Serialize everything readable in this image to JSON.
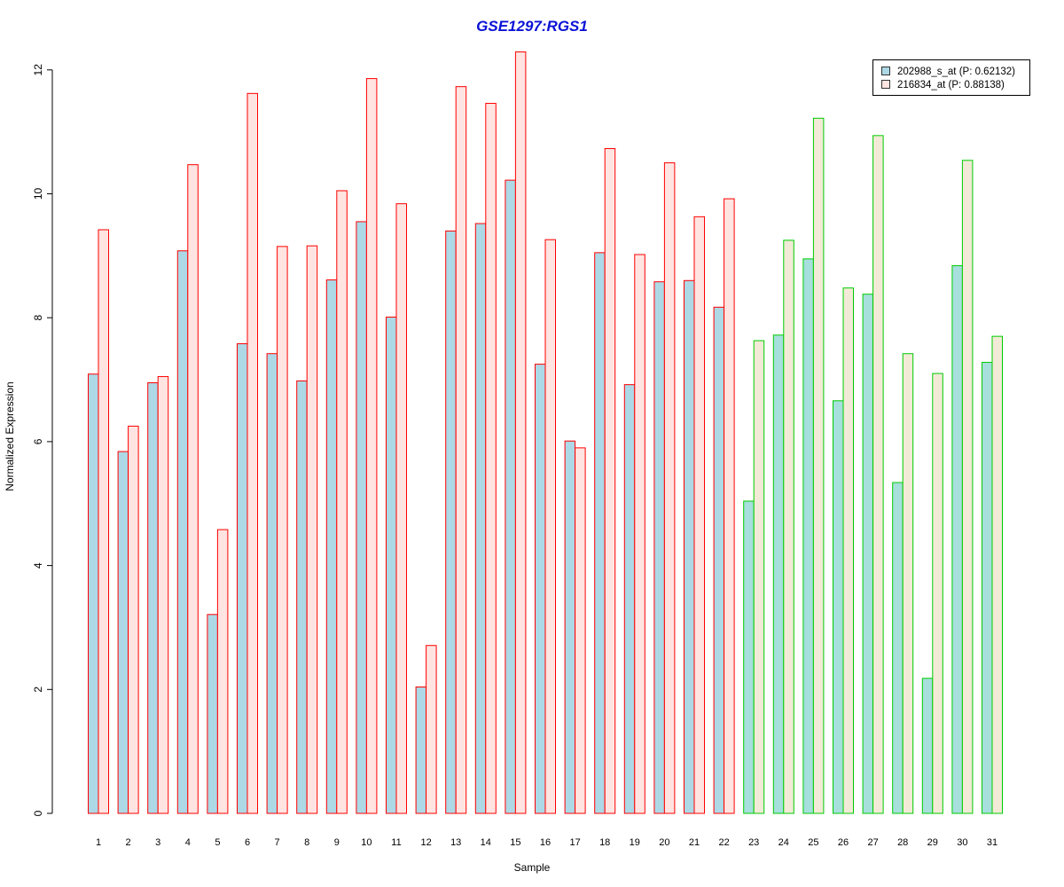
{
  "chart_data": {
    "type": "bar",
    "title": "GSE1297:RGS1",
    "xlabel": "Sample",
    "ylabel": "Normalized Expression",
    "ylim": [
      0,
      12.6
    ],
    "yticks": [
      "0",
      "2",
      "4",
      "6",
      "8",
      "10",
      "12"
    ],
    "categories": [
      "1",
      "2",
      "3",
      "4",
      "5",
      "6",
      "7",
      "8",
      "9",
      "10",
      "11",
      "12",
      "13",
      "14",
      "15",
      "16",
      "17",
      "18",
      "19",
      "20",
      "21",
      "22",
      "23",
      "24",
      "25",
      "26",
      "27",
      "28",
      "29",
      "30",
      "31"
    ],
    "group_by_sample": [
      "red",
      "red",
      "red",
      "red",
      "red",
      "red",
      "red",
      "red",
      "red",
      "red",
      "red",
      "red",
      "red",
      "red",
      "red",
      "red",
      "red",
      "red",
      "red",
      "red",
      "red",
      "red",
      "green",
      "green",
      "green",
      "green",
      "green",
      "green",
      "green",
      "green",
      "green"
    ],
    "series": [
      {
        "name": "202988_s_at (P: 0.62132)",
        "values": [
          7.09,
          5.84,
          6.95,
          9.08,
          3.21,
          7.58,
          7.42,
          6.98,
          8.61,
          9.55,
          8.01,
          2.04,
          9.4,
          9.52,
          10.22,
          7.25,
          6.01,
          9.05,
          6.92,
          8.58,
          8.6,
          8.17,
          5.04,
          7.72,
          8.95,
          6.66,
          8.38,
          5.34,
          2.18,
          8.84,
          7.28
        ]
      },
      {
        "name": "216834_at (P: 0.88138)",
        "values": [
          9.42,
          6.25,
          7.05,
          10.47,
          4.58,
          11.62,
          9.15,
          9.16,
          10.05,
          11.86,
          9.84,
          2.71,
          11.73,
          11.46,
          12.29,
          9.26,
          5.9,
          10.73,
          9.02,
          10.5,
          9.63,
          9.92,
          7.63,
          9.25,
          11.22,
          8.48,
          10.94,
          7.42,
          7.1,
          10.54,
          7.7
        ]
      }
    ],
    "legend": {
      "placement": "top-right",
      "items": [
        {
          "label": "202988_s_at (P: 0.62132)",
          "fill": "#add8e6"
        },
        {
          "label": "216834_at (P: 0.88138)",
          "fill": "#ffe4e1"
        }
      ]
    },
    "colors": {
      "series1_fill_red_group": "#add8e6",
      "series2_fill_red_group": "#ffe4e1",
      "series1_fill_green_group": "#a6dfdc",
      "series2_fill_green_group": "#f2ead6",
      "border_red_group": "#ff0000",
      "border_green_group": "#00cc00",
      "title_color": "#0a12d6"
    }
  }
}
